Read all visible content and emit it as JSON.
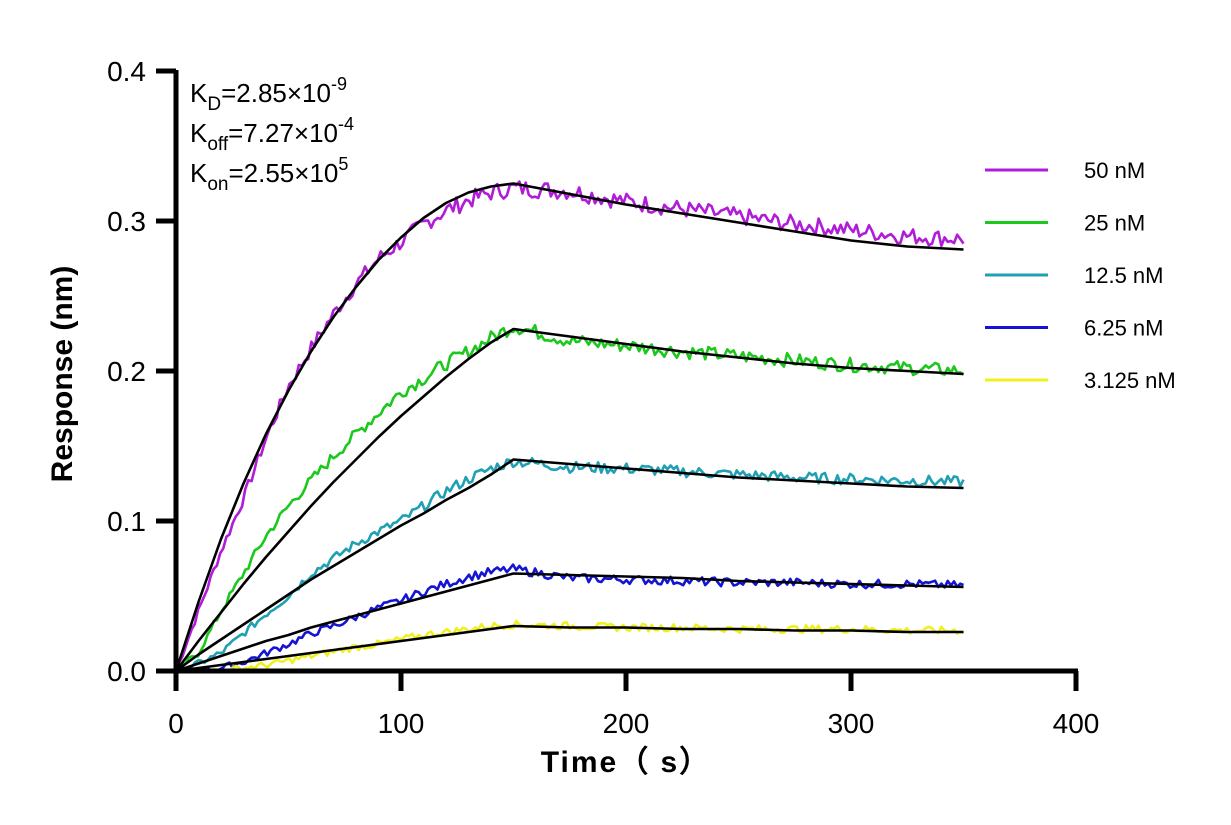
{
  "chart_data": {
    "type": "line",
    "xlabel": "Time（ s）",
    "ylabel": "Response (nm)",
    "xlim": [
      0,
      400
    ],
    "ylim": [
      0,
      0.4
    ],
    "xticks": [
      0,
      100,
      200,
      300,
      400
    ],
    "xtick_labels": [
      "0",
      "100",
      "200",
      "300",
      "400"
    ],
    "yticks": [
      0,
      0.1,
      0.2,
      0.3,
      0.4
    ],
    "ytick_labels": [
      "0.0",
      "0.1",
      "0.2",
      "0.3",
      "0.4"
    ],
    "grid": false,
    "legend_position": "right",
    "annotations": [
      {
        "base": "K",
        "sub": "D",
        "value": "=2.85×10",
        "exp": "-9"
      },
      {
        "base": "K",
        "sub": "off",
        "value": "=7.27×10",
        "exp": "-4"
      },
      {
        "base": "K",
        "sub": "on",
        "value": "=2.55×10",
        "exp": "5"
      }
    ],
    "fit_color": "#000000",
    "series": [
      {
        "name": "50 nM",
        "color": "#B01CD8",
        "x": [
          0,
          10,
          20,
          30,
          40,
          50,
          60,
          70,
          80,
          90,
          100,
          110,
          120,
          130,
          140,
          150,
          175,
          200,
          225,
          250,
          275,
          300,
          325,
          350
        ],
        "y": [
          0.0,
          0.04,
          0.08,
          0.115,
          0.155,
          0.19,
          0.215,
          0.238,
          0.258,
          0.275,
          0.286,
          0.298,
          0.307,
          0.314,
          0.319,
          0.322,
          0.32,
          0.313,
          0.308,
          0.303,
          0.298,
          0.294,
          0.29,
          0.288
        ],
        "fit_y": [
          0.0,
          0.046,
          0.088,
          0.125,
          0.158,
          0.187,
          0.213,
          0.236,
          0.256,
          0.274,
          0.289,
          0.302,
          0.312,
          0.319,
          0.323,
          0.325,
          0.318,
          0.311,
          0.305,
          0.299,
          0.293,
          0.287,
          0.283,
          0.281
        ]
      },
      {
        "name": "25 nM",
        "color": "#1CC81C",
        "x": [
          0,
          10,
          20,
          30,
          40,
          50,
          60,
          70,
          80,
          90,
          100,
          110,
          120,
          130,
          140,
          150,
          175,
          200,
          225,
          250,
          275,
          300,
          325,
          350
        ],
        "y": [
          0.0,
          0.012,
          0.04,
          0.065,
          0.09,
          0.11,
          0.127,
          0.143,
          0.158,
          0.172,
          0.186,
          0.195,
          0.205,
          0.213,
          0.222,
          0.23,
          0.22,
          0.217,
          0.213,
          0.21,
          0.207,
          0.204,
          0.202,
          0.2
        ],
        "fit_y": [
          0.0,
          0.02,
          0.039,
          0.058,
          0.076,
          0.093,
          0.11,
          0.126,
          0.141,
          0.156,
          0.17,
          0.183,
          0.196,
          0.208,
          0.219,
          0.228,
          0.223,
          0.218,
          0.213,
          0.209,
          0.205,
          0.202,
          0.2,
          0.198
        ]
      },
      {
        "name": "12.5 nM",
        "color": "#1FA0B4",
        "x": [
          0,
          10,
          20,
          30,
          40,
          50,
          60,
          70,
          80,
          90,
          100,
          110,
          120,
          130,
          140,
          150,
          175,
          200,
          225,
          250,
          275,
          300,
          325,
          350
        ],
        "y": [
          0.0,
          0.005,
          0.012,
          0.025,
          0.038,
          0.05,
          0.065,
          0.075,
          0.085,
          0.093,
          0.1,
          0.11,
          0.12,
          0.128,
          0.135,
          0.14,
          0.136,
          0.135,
          0.133,
          0.131,
          0.129,
          0.128,
          0.127,
          0.126
        ],
        "fit_y": [
          0.0,
          0.011,
          0.021,
          0.031,
          0.041,
          0.051,
          0.061,
          0.07,
          0.079,
          0.088,
          0.097,
          0.105,
          0.114,
          0.122,
          0.131,
          0.141,
          0.138,
          0.135,
          0.132,
          0.129,
          0.127,
          0.125,
          0.123,
          0.122
        ]
      },
      {
        "name": "6.25 nM",
        "color": "#1414D2",
        "x": [
          0,
          10,
          20,
          30,
          40,
          50,
          60,
          70,
          80,
          90,
          100,
          110,
          120,
          130,
          140,
          150,
          175,
          200,
          225,
          250,
          275,
          300,
          325,
          350
        ],
        "y": [
          0.0,
          0.0,
          0.002,
          0.006,
          0.012,
          0.018,
          0.025,
          0.03,
          0.036,
          0.042,
          0.047,
          0.053,
          0.058,
          0.063,
          0.066,
          0.068,
          0.062,
          0.061,
          0.06,
          0.059,
          0.059,
          0.058,
          0.058,
          0.057
        ],
        "fit_y": [
          0.0,
          0.005,
          0.01,
          0.015,
          0.02,
          0.024,
          0.029,
          0.033,
          0.037,
          0.041,
          0.045,
          0.049,
          0.053,
          0.057,
          0.061,
          0.065,
          0.064,
          0.063,
          0.062,
          0.06,
          0.059,
          0.058,
          0.057,
          0.056
        ]
      },
      {
        "name": "3.125 nM",
        "color": "#F0F01E",
        "x": [
          0,
          10,
          20,
          30,
          40,
          50,
          60,
          70,
          80,
          90,
          100,
          110,
          120,
          130,
          140,
          150,
          175,
          200,
          225,
          250,
          275,
          300,
          325,
          350
        ],
        "y": [
          0.0,
          0.0,
          0.0,
          0.002,
          0.004,
          0.007,
          0.01,
          0.013,
          0.016,
          0.018,
          0.021,
          0.024,
          0.026,
          0.028,
          0.03,
          0.031,
          0.03,
          0.029,
          0.029,
          0.028,
          0.028,
          0.028,
          0.027,
          0.027
        ],
        "fit_y": [
          0.0,
          0.002,
          0.004,
          0.006,
          0.008,
          0.01,
          0.012,
          0.014,
          0.016,
          0.018,
          0.02,
          0.022,
          0.024,
          0.026,
          0.028,
          0.03,
          0.029,
          0.029,
          0.028,
          0.028,
          0.027,
          0.027,
          0.026,
          0.026
        ]
      }
    ]
  }
}
